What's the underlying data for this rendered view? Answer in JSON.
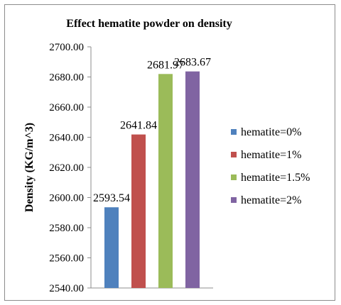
{
  "chart_data": {
    "type": "bar",
    "title": "Effect hematite powder on density",
    "xlabel": "",
    "ylabel": "Density (KG/m^3)",
    "ylim": [
      2540,
      2700
    ],
    "yticks": [
      "2540.00",
      "2560.00",
      "2580.00",
      "2600.00",
      "2620.00",
      "2640.00",
      "2660.00",
      "2680.00",
      "2700.00"
    ],
    "grid": false,
    "legend_position": "right",
    "series": [
      {
        "name": "hematite=0%",
        "value": 2593.54,
        "label": "2593.54",
        "color": "#4f81bd"
      },
      {
        "name": "hematite=1%",
        "value": 2641.84,
        "label": "2641.84",
        "color": "#c0504d"
      },
      {
        "name": "hematite=1.5%",
        "value": 2681.97,
        "label": "2681.97",
        "color": "#9bbb59"
      },
      {
        "name": "hematite=2%",
        "value": 2683.67,
        "label": "2683.67",
        "color": "#8064a2"
      }
    ]
  }
}
